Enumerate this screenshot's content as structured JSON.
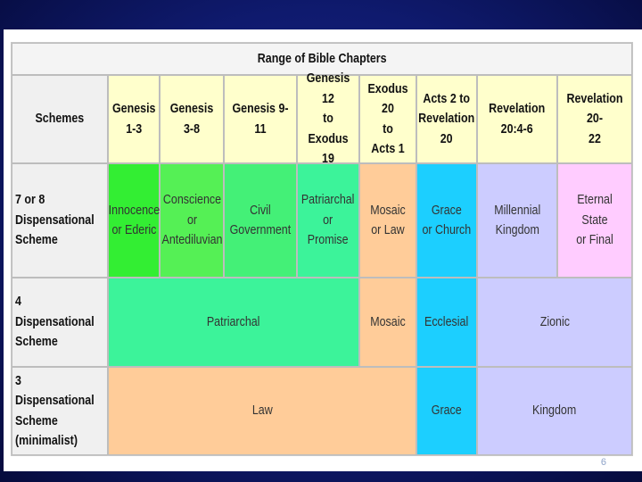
{
  "table": {
    "title": "Range of Bible Chapters",
    "corner_label": "Schemes",
    "columns": [
      "Genesis\n1-3",
      "Genesis 3-8",
      "Genesis 9-11",
      "Genesis 12\nto Exodus\n19",
      "Exodus 20\nto\nActs 1",
      "Acts 2 to\nRevelation\n20",
      "Revelation\n20:4-6",
      "Revelation 20-\n22"
    ],
    "rows": [
      {
        "label": "7 or 8\nDispensational\nScheme",
        "cells": [
          {
            "text": "Innocence\nor Ederic",
            "color": "#33ee33"
          },
          {
            "text": "Conscience\nor\nAntediluvian",
            "color": "#55f055"
          },
          {
            "text": "Civil\nGovernment",
            "color": "#44f077"
          },
          {
            "text": "Patriarchal\nor Promise",
            "color": "#3cf39a"
          },
          {
            "text": "Mosaic\nor Law",
            "color": "#ffcc99"
          },
          {
            "text": "Grace\nor Church",
            "color": "#1ccfff"
          },
          {
            "text": "Millennial\nKingdom",
            "color": "#ccccff"
          },
          {
            "text": "Eternal State\nor Final",
            "color": "#ffccff"
          }
        ]
      },
      {
        "label": "4 Dispensational\nScheme",
        "cells": [
          {
            "text": "Patriarchal",
            "color": "#3cf39a"
          },
          {
            "text": "Mosaic",
            "color": "#ffcc99"
          },
          {
            "text": "Ecclesial",
            "color": "#1ccfff"
          },
          {
            "text": "Zionic",
            "color": "#ccccff"
          }
        ]
      },
      {
        "label": "3 Dispensational\nScheme\n(minimalist)",
        "cells": [
          {
            "text": "Law",
            "color": "#ffcc99"
          },
          {
            "text": "Grace",
            "color": "#1ccfff"
          },
          {
            "text": "Kingdom",
            "color": "#ccccff"
          }
        ]
      }
    ],
    "header_color": "#ffffcc",
    "label_color": "#f0f0f0"
  },
  "slide": {
    "number": "6"
  }
}
